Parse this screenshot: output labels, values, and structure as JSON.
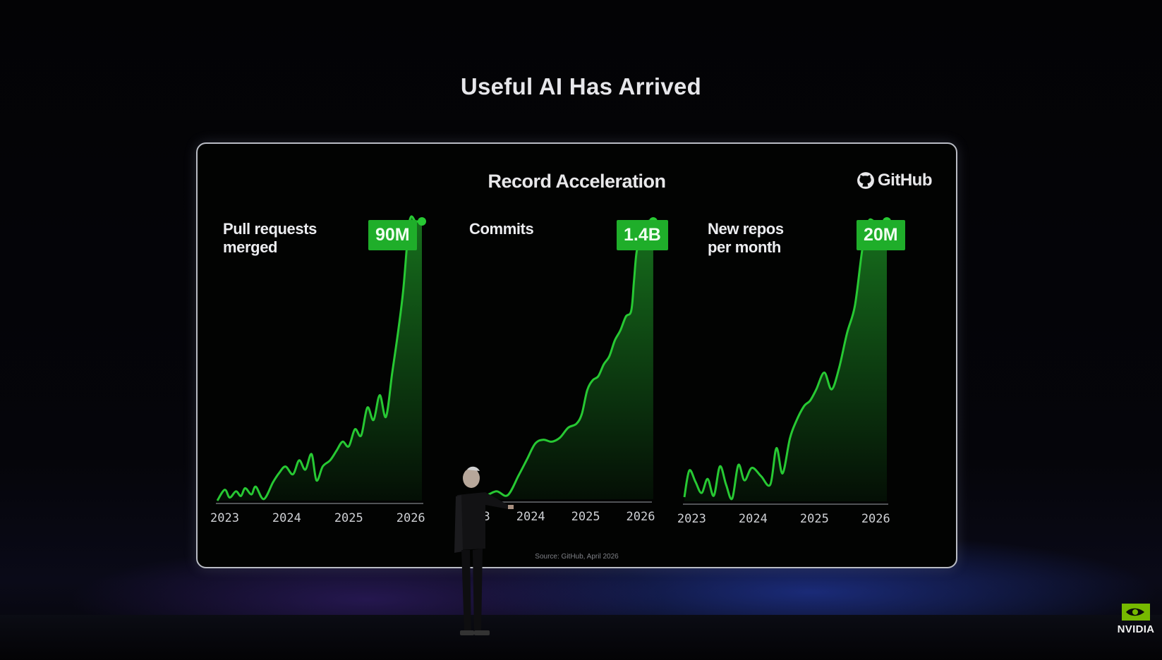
{
  "page": {
    "title": "Useful AI Has Arrived"
  },
  "card": {
    "title": "Record Acceleration",
    "brand": "GitHub",
    "source": "Source: GitHub, April 2026"
  },
  "colors": {
    "accent": "#27c933",
    "badge": "#1fae2a",
    "background": "#020302"
  },
  "charts": [
    {
      "label_line1": "Pull requests",
      "label_line2": "merged",
      "badge": "90M"
    },
    {
      "label_line1": "Commits",
      "label_line2": "",
      "badge": "1.4B"
    },
    {
      "label_line1": "New repos",
      "label_line2": "per month",
      "badge": "20M"
    }
  ],
  "chart_data": [
    {
      "type": "area",
      "title": "Pull requests merged",
      "x_ticks": [
        "2023",
        "2024",
        "2025",
        "2026"
      ],
      "x": [
        2023.0,
        2023.12,
        2023.2,
        2023.3,
        2023.38,
        2023.45,
        2023.55,
        2023.62,
        2023.75,
        2023.9,
        2024.0,
        2024.1,
        2024.22,
        2024.32,
        2024.42,
        2024.52,
        2024.6,
        2024.7,
        2024.82,
        2024.92,
        2025.02,
        2025.12,
        2025.22,
        2025.32,
        2025.42,
        2025.52,
        2025.62,
        2025.72,
        2025.82,
        2025.92,
        2026.0,
        2026.1,
        2026.2,
        2026.3
      ],
      "values": [
        0,
        3.5,
        1,
        3,
        1.5,
        4,
        2,
        4.5,
        0.5,
        6,
        9,
        11,
        8.5,
        13,
        10,
        15,
        6.5,
        11,
        13,
        16,
        19,
        17.5,
        23,
        21,
        30,
        26,
        34,
        27,
        41,
        55,
        68,
        90,
        90,
        90
      ],
      "final_value": 90,
      "ylim": [
        0,
        90
      ]
    },
    {
      "type": "area",
      "title": "Commits",
      "x_ticks": [
        "2023",
        "2024",
        "2025",
        "2026"
      ],
      "x": [
        2023.0,
        2023.3,
        2023.5,
        2023.7,
        2023.9,
        2024.05,
        2024.2,
        2024.35,
        2024.5,
        2024.65,
        2024.8,
        2024.95,
        2025.05,
        2025.15,
        2025.25,
        2025.35,
        2025.45,
        2025.55,
        2025.65,
        2025.75,
        2025.85,
        2025.95,
        2026.0,
        2026.05,
        2026.15,
        2026.25,
        2026.35
      ],
      "values": [
        0.02,
        0.02,
        0.04,
        0.02,
        0.12,
        0.2,
        0.28,
        0.3,
        0.29,
        0.31,
        0.36,
        0.38,
        0.43,
        0.55,
        0.6,
        0.62,
        0.68,
        0.72,
        0.8,
        0.85,
        0.92,
        0.95,
        1.1,
        1.25,
        1.35,
        1.4,
        1.4
      ],
      "final_value": 1.4,
      "ylim": [
        0,
        1.4
      ]
    },
    {
      "type": "area",
      "title": "New repos per month",
      "x_ticks": [
        "2023",
        "2024",
        "2025",
        "2026"
      ],
      "x": [
        2023.0,
        2023.08,
        2023.18,
        2023.28,
        2023.38,
        2023.48,
        2023.58,
        2023.68,
        2023.78,
        2023.88,
        2023.98,
        2024.1,
        2024.25,
        2024.4,
        2024.5,
        2024.6,
        2024.72,
        2024.82,
        2024.95,
        2025.05,
        2025.15,
        2025.28,
        2025.4,
        2025.52,
        2025.65,
        2025.78,
        2025.9,
        2026.0,
        2026.1,
        2026.2,
        2026.3
      ],
      "values": [
        0.3,
        2.2,
        1.4,
        0.6,
        1.6,
        0.4,
        2.5,
        1.2,
        0.2,
        2.6,
        1.5,
        2.4,
        1.8,
        1.2,
        3.8,
        2.0,
        4.5,
        5.7,
        6.8,
        7.2,
        8.0,
        9.2,
        8.0,
        9.5,
        12.0,
        14.0,
        18.0,
        20,
        20,
        20,
        20
      ],
      "final_value": 20,
      "ylim": [
        0,
        20
      ]
    }
  ],
  "branding": {
    "wordmark": "nvidia",
    "wordmark_display": "NVIDIA"
  }
}
